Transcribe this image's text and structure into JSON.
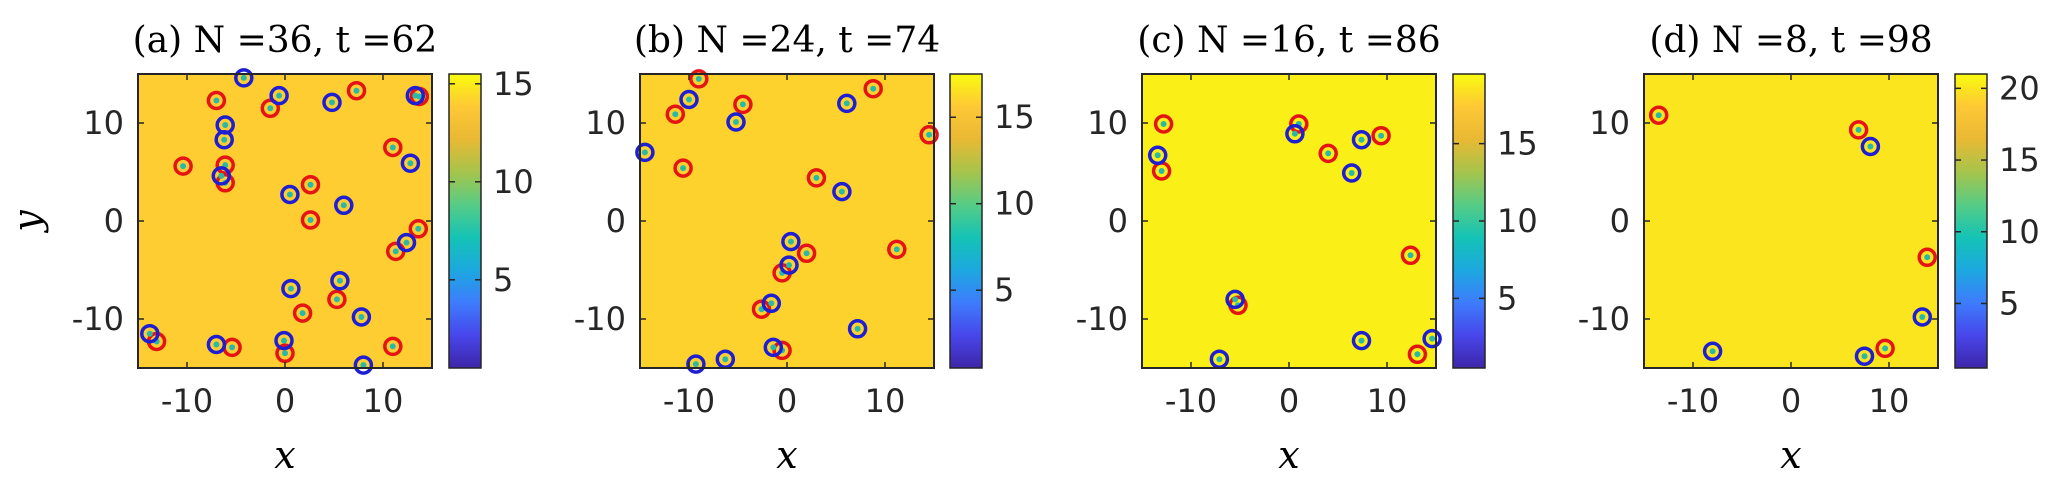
{
  "colors": {
    "red_marker": "#e51414",
    "blue_marker": "#1e1ed2",
    "marker_center": "#2ab8a8",
    "colormap": [
      "#3e26a8",
      "#4746eb",
      "#3e7cfd",
      "#1ca8df",
      "#14c3b5",
      "#57cc85",
      "#a6c44b",
      "#e9b934",
      "#fec835",
      "#f9fb0e"
    ]
  },
  "chart_data": [
    {
      "type": "scatter",
      "title": "(a) N =36, t =62",
      "xlabel": "x",
      "ylabel": "y",
      "xlim": [
        -15,
        15
      ],
      "ylim": [
        -15,
        15
      ],
      "xticks": [
        "-10",
        "0",
        "10"
      ],
      "yticks": [
        "10",
        "0",
        "-10"
      ],
      "background_value": 14,
      "colorbar": {
        "min": 0.5,
        "max": 15.5,
        "ticks": [
          "15",
          "10",
          "5"
        ]
      },
      "series": [
        {
          "color": "red",
          "points": [
            [
              -7,
              12.3
            ],
            [
              -1.5,
              11.5
            ],
            [
              7.3,
              13.3
            ],
            [
              13.7,
              12.7
            ],
            [
              -10.4,
              5.6
            ],
            [
              -6.1,
              5.7
            ],
            [
              -6.1,
              3.9
            ],
            [
              2.6,
              3.7
            ],
            [
              11,
              7.5
            ],
            [
              2.6,
              0.1
            ],
            [
              11.3,
              -3.1
            ],
            [
              13.6,
              -0.8
            ],
            [
              1.8,
              -9.4
            ],
            [
              5.3,
              -8
            ],
            [
              11,
              -12.8
            ],
            [
              -13.1,
              -12.3
            ],
            [
              -5.4,
              -12.9
            ],
            [
              0,
              -13.5
            ]
          ]
        },
        {
          "color": "blue",
          "points": [
            [
              -4.2,
              14.6
            ],
            [
              -0.6,
              12.8
            ],
            [
              4.8,
              12.1
            ],
            [
              13.3,
              12.8
            ],
            [
              -6.1,
              9.8
            ],
            [
              -6.2,
              8.3
            ],
            [
              12.8,
              5.9
            ],
            [
              -6.5,
              4.6
            ],
            [
              0.5,
              2.7
            ],
            [
              6,
              1.6
            ],
            [
              12.4,
              -2.2
            ],
            [
              0.6,
              -6.9
            ],
            [
              5.6,
              -6.1
            ],
            [
              7.8,
              -9.8
            ],
            [
              -13.8,
              -11.5
            ],
            [
              -7,
              -12.6
            ],
            [
              -0.1,
              -12.2
            ],
            [
              8,
              -14.7
            ]
          ]
        }
      ]
    },
    {
      "type": "scatter",
      "title": "(b) N =24, t =74",
      "xlabel": "x",
      "ylabel": "",
      "xlim": [
        -15,
        15
      ],
      "ylim": [
        -15,
        15
      ],
      "xticks": [
        "-10",
        "0",
        "10"
      ],
      "yticks": [
        "10",
        "0",
        "-10"
      ],
      "background_value": 16,
      "colorbar": {
        "min": 0.5,
        "max": 17.5,
        "ticks": [
          "15",
          "10",
          "5"
        ]
      },
      "series": [
        {
          "color": "red",
          "points": [
            [
              -9,
              14.5
            ],
            [
              -4.5,
              11.9
            ],
            [
              -11.4,
              10.9
            ],
            [
              8.8,
              13.5
            ],
            [
              14.5,
              8.8
            ],
            [
              -10.6,
              5.4
            ],
            [
              3,
              4.4
            ],
            [
              2,
              -3.3
            ],
            [
              11.2,
              -2.9
            ],
            [
              -0.5,
              -5.3
            ],
            [
              -2.6,
              -9
            ],
            [
              -0.5,
              -13.2
            ]
          ]
        },
        {
          "color": "blue",
          "points": [
            [
              -10,
              12.4
            ],
            [
              -5.2,
              10.1
            ],
            [
              6.1,
              12
            ],
            [
              -14.5,
              7
            ],
            [
              5.6,
              3
            ],
            [
              0.4,
              -2.1
            ],
            [
              0.2,
              -4.5
            ],
            [
              -1.6,
              -8.4
            ],
            [
              7.2,
              -11
            ],
            [
              -1.4,
              -12.9
            ],
            [
              -9.3,
              -14.6
            ],
            [
              -6.3,
              -14.1
            ]
          ]
        }
      ]
    },
    {
      "type": "scatter",
      "title": "(c) N =16, t =86",
      "xlabel": "x",
      "ylabel": "",
      "xlim": [
        -15,
        15
      ],
      "ylim": [
        -15,
        15
      ],
      "xticks": [
        "-10",
        "0",
        "10"
      ],
      "yticks": [
        "10",
        "0",
        "-10"
      ],
      "background_value": 19,
      "colorbar": {
        "min": 0.5,
        "max": 19.5,
        "ticks": [
          "15",
          "10",
          "5"
        ]
      },
      "series": [
        {
          "color": "red",
          "points": [
            [
              -12.8,
              9.9
            ],
            [
              -13,
              5.1
            ],
            [
              1,
              9.9
            ],
            [
              9.4,
              8.7
            ],
            [
              4,
              6.9
            ],
            [
              12.4,
              -3.5
            ],
            [
              -5.2,
              -8.6
            ],
            [
              13.1,
              -13.6
            ]
          ]
        },
        {
          "color": "blue",
          "points": [
            [
              -13.4,
              6.7
            ],
            [
              0.6,
              8.9
            ],
            [
              7.4,
              8.3
            ],
            [
              6.4,
              4.9
            ],
            [
              -5.5,
              -8
            ],
            [
              -7.1,
              -14.1
            ],
            [
              7.4,
              -12.2
            ],
            [
              14.6,
              -12
            ]
          ]
        }
      ]
    },
    {
      "type": "scatter",
      "title": "(d) N =8, t =98",
      "xlabel": "x",
      "ylabel": "",
      "xlim": [
        -15,
        15
      ],
      "ylim": [
        -15,
        15
      ],
      "xticks": [
        "-10",
        "0",
        "10"
      ],
      "yticks": [
        "10",
        "0",
        "-10"
      ],
      "background_value": 20,
      "colorbar": {
        "min": 0.5,
        "max": 21,
        "ticks": [
          "20",
          "15",
          "10",
          "5"
        ]
      },
      "series": [
        {
          "color": "red",
          "points": [
            [
              -13.5,
              10.8
            ],
            [
              6.9,
              9.3
            ],
            [
              13.9,
              -3.7
            ],
            [
              9.6,
              -13
            ]
          ]
        },
        {
          "color": "blue",
          "points": [
            [
              8.1,
              7.6
            ],
            [
              13.4,
              -9.8
            ],
            [
              -8,
              -13.3
            ],
            [
              7.5,
              -13.8
            ]
          ]
        }
      ]
    }
  ]
}
